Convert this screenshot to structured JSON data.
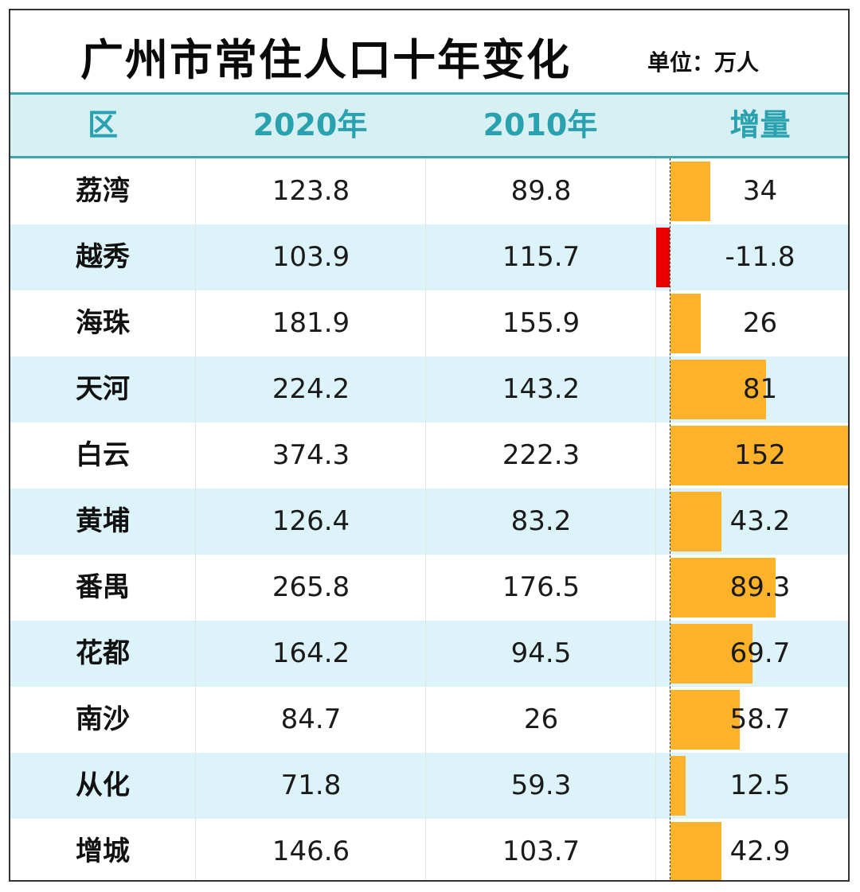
{
  "title": "广州市常住人口十年变化",
  "unit": "单位：万人",
  "columns": [
    "区",
    "2020年",
    "2010年",
    "增量"
  ],
  "rows": [
    {
      "district": "荔湾",
      "y2020": "123.8",
      "y2010": "89.8",
      "increase": "34"
    },
    {
      "district": "越秀",
      "y2020": "103.9",
      "y2010": "115.7",
      "increase": "-11.8"
    },
    {
      "district": "海珠",
      "y2020": "181.9",
      "y2010": "155.9",
      "increase": "26"
    },
    {
      "district": "天河",
      "y2020": "224.2",
      "y2010": "143.2",
      "increase": "81"
    },
    {
      "district": "白云",
      "y2020": "374.3",
      "y2010": "222.3",
      "increase": "152"
    },
    {
      "district": "黄埔",
      "y2020": "126.4",
      "y2010": "83.2",
      "increase": "43.2"
    },
    {
      "district": "番禺",
      "y2020": "265.8",
      "y2010": "176.5",
      "increase": "89.3"
    },
    {
      "district": "花都",
      "y2020": "164.2",
      "y2010": "94.5",
      "increase": "69.7"
    },
    {
      "district": "南沙",
      "y2020": "84.7",
      "y2010": "26",
      "increase": "58.7"
    },
    {
      "district": "从化",
      "y2020": "71.8",
      "y2010": "59.3",
      "increase": "12.5"
    },
    {
      "district": "增城",
      "y2020": "146.6",
      "y2010": "103.7",
      "increase": "42.9"
    }
  ],
  "colors": {
    "header_bg": "#d7f0f4",
    "header_text": "#2aa1ae",
    "header_border": "#3aa7ad",
    "alt_row_bg": "#dcf3f9",
    "positive_bar": "#fdb22b",
    "negative_bar": "#ee0000"
  },
  "chart_data": {
    "type": "table",
    "title": "广州市常住人口十年变化",
    "subtitle": "单位：万人",
    "columns": [
      "区",
      "2020年",
      "2010年",
      "增量"
    ],
    "categories": [
      "荔湾",
      "越秀",
      "海珠",
      "天河",
      "白云",
      "黄埔",
      "番禺",
      "花都",
      "南沙",
      "从化",
      "增城"
    ],
    "series": [
      {
        "name": "2020年",
        "values": [
          123.8,
          103.9,
          181.9,
          224.2,
          374.3,
          126.4,
          265.8,
          164.2,
          84.7,
          71.8,
          146.6
        ]
      },
      {
        "name": "2010年",
        "values": [
          89.8,
          115.7,
          155.9,
          143.2,
          222.3,
          83.2,
          176.5,
          94.5,
          26,
          59.3,
          103.7
        ]
      },
      {
        "name": "增量",
        "values": [
          34,
          -11.8,
          26,
          81,
          152,
          43.2,
          89.3,
          69.7,
          58.7,
          12.5,
          42.9
        ]
      }
    ],
    "data_bars": {
      "column": "增量",
      "max": 152,
      "positive_color": "#fdb22b",
      "negative_color": "#ee0000"
    }
  }
}
